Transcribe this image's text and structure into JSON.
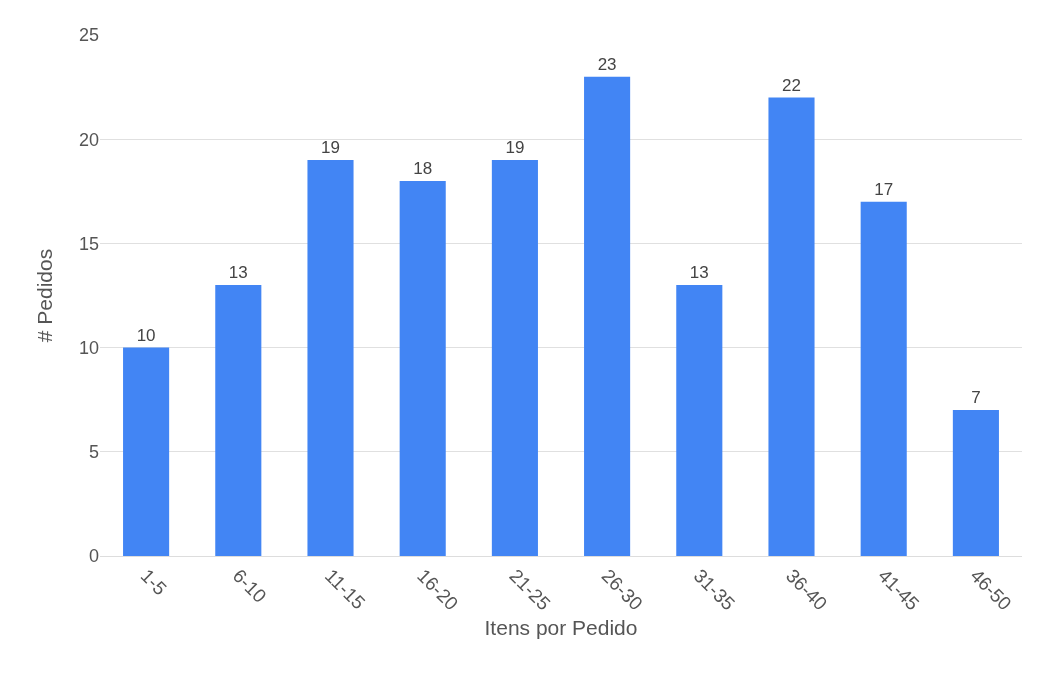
{
  "chart_data": {
    "type": "bar",
    "xlabel": "Itens por Pedido",
    "ylabel": "# Pedidos",
    "categories": [
      "1-5",
      "6-10",
      "11-15",
      "16-20",
      "21-25",
      "26-30",
      "31-35",
      "36-40",
      "41-45",
      "46-50"
    ],
    "values": [
      10,
      13,
      19,
      18,
      19,
      23,
      13,
      22,
      17,
      7
    ],
    "color": "#4285f4",
    "ylim": [
      0,
      25
    ],
    "yticks": [
      0,
      5,
      10,
      15,
      20,
      25
    ],
    "grid": "y",
    "data_labels": true,
    "legend": false
  }
}
